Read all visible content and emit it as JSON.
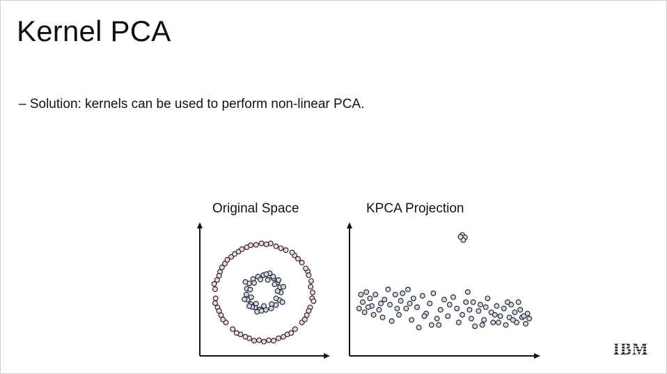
{
  "slide": {
    "title": "Kernel PCA",
    "bullet": "– Solution: kernels can be used to perform non-linear PCA.",
    "logo_text": "IBM"
  },
  "chart_data": [
    {
      "type": "scatter",
      "title": "Original Space",
      "xlabel": "",
      "ylabel": "",
      "xlim": [
        -1.2,
        1.2
      ],
      "ylim": [
        -1.2,
        1.2
      ],
      "grid": false,
      "axis_ticks": false,
      "series": [
        {
          "color": "#f3d6d9",
          "points": [
            [
              1.0,
              0.0
            ],
            [
              0.97,
              0.24
            ],
            [
              0.9,
              0.44
            ],
            [
              0.78,
              0.62
            ],
            [
              0.63,
              0.77
            ],
            [
              0.45,
              0.88
            ],
            [
              0.25,
              0.96
            ],
            [
              0.05,
              1.0
            ],
            [
              -0.16,
              0.99
            ],
            [
              -0.35,
              0.94
            ],
            [
              -0.52,
              0.85
            ],
            [
              -0.67,
              0.74
            ],
            [
              -0.8,
              0.6
            ],
            [
              -0.9,
              0.43
            ],
            [
              -0.96,
              0.26
            ],
            [
              -1.0,
              0.07
            ],
            [
              -0.99,
              -0.12
            ],
            [
              -0.95,
              -0.31
            ],
            [
              -0.88,
              -0.47
            ],
            [
              -0.78,
              -0.62
            ],
            [
              -0.64,
              -0.76
            ],
            [
              -0.48,
              -0.87
            ],
            [
              -0.3,
              -0.95
            ],
            [
              -0.1,
              -0.99
            ],
            [
              0.1,
              -0.99
            ],
            [
              0.3,
              -0.95
            ],
            [
              0.48,
              -0.87
            ],
            [
              0.64,
              -0.76
            ],
            [
              0.78,
              -0.62
            ],
            [
              0.88,
              -0.47
            ],
            [
              0.95,
              -0.31
            ],
            [
              0.99,
              -0.12
            ],
            [
              0.96,
              0.12
            ],
            [
              0.86,
              0.5
            ],
            [
              0.58,
              0.83
            ],
            [
              0.14,
              1.02
            ],
            [
              -0.27,
              0.98
            ],
            [
              -0.6,
              0.8
            ],
            [
              -0.86,
              0.52
            ],
            [
              -1.02,
              0.18
            ],
            [
              -1.0,
              -0.22
            ],
            [
              -0.84,
              -0.56
            ],
            [
              -0.56,
              -0.84
            ],
            [
              -0.2,
              -1.0
            ],
            [
              0.2,
              -1.0
            ],
            [
              0.56,
              -0.84
            ],
            [
              0.84,
              -0.56
            ],
            [
              1.02,
              -0.18
            ],
            [
              0.7,
              0.7
            ],
            [
              0.35,
              0.92
            ],
            [
              -0.45,
              0.9
            ],
            [
              -0.92,
              0.35
            ],
            [
              -0.92,
              -0.38
            ],
            [
              -0.38,
              -0.92
            ],
            [
              0.4,
              -0.92
            ],
            [
              0.92,
              -0.38
            ],
            [
              0.92,
              0.36
            ],
            [
              -0.05,
              1.02
            ],
            [
              -0.75,
              0.68
            ],
            [
              0.0,
              -1.02
            ]
          ]
        },
        {
          "color": "#cdd9ea",
          "points": [
            [
              0.35,
              0.0
            ],
            [
              0.33,
              0.11
            ],
            [
              0.28,
              0.21
            ],
            [
              0.2,
              0.29
            ],
            [
              0.1,
              0.34
            ],
            [
              -0.01,
              0.36
            ],
            [
              -0.12,
              0.33
            ],
            [
              -0.22,
              0.28
            ],
            [
              -0.3,
              0.19
            ],
            [
              -0.35,
              0.08
            ],
            [
              -0.36,
              -0.04
            ],
            [
              -0.33,
              -0.15
            ],
            [
              -0.27,
              -0.24
            ],
            [
              -0.18,
              -0.31
            ],
            [
              -0.08,
              -0.35
            ],
            [
              0.04,
              -0.36
            ],
            [
              0.15,
              -0.33
            ],
            [
              0.25,
              -0.26
            ],
            [
              0.32,
              -0.16
            ],
            [
              0.28,
              0.03
            ],
            [
              0.22,
              0.17
            ],
            [
              0.08,
              0.26
            ],
            [
              -0.07,
              0.27
            ],
            [
              -0.2,
              0.2
            ],
            [
              -0.28,
              0.06
            ],
            [
              -0.26,
              -0.1
            ],
            [
              -0.16,
              -0.23
            ],
            [
              0.0,
              -0.28
            ],
            [
              0.16,
              -0.24
            ],
            [
              0.25,
              -0.12
            ],
            [
              0.4,
              0.12
            ],
            [
              -0.4,
              -0.14
            ],
            [
              0.12,
              0.4
            ],
            [
              -0.14,
              -0.4
            ],
            [
              0.38,
              -0.2
            ],
            [
              -0.38,
              0.22
            ],
            [
              0.19,
              0.33
            ],
            [
              -0.24,
              -0.3
            ],
            [
              0.3,
              0.26
            ],
            [
              -0.3,
              -0.28
            ],
            [
              0.05,
              0.38
            ],
            [
              -0.05,
              -0.38
            ]
          ]
        }
      ]
    },
    {
      "type": "scatter",
      "title": "KPCA Projection",
      "xlabel": "",
      "ylabel": "",
      "xlim": [
        0,
        1
      ],
      "ylim": [
        0,
        1
      ],
      "grid": false,
      "axis_ticks": false,
      "series": [
        {
          "color": "#f3d6d9",
          "points": [
            [
              0.6,
              0.91
            ],
            [
              0.615,
              0.89
            ],
            [
              0.605,
              0.87
            ],
            [
              0.59,
              0.895
            ]
          ]
        },
        {
          "color": "#cdd9ea",
          "points": [
            [
              0.04,
              0.44
            ],
            [
              0.07,
              0.46
            ],
            [
              0.05,
              0.38
            ],
            [
              0.09,
              0.41
            ],
            [
              0.12,
              0.44
            ],
            [
              0.1,
              0.35
            ],
            [
              0.06,
              0.3
            ],
            [
              0.14,
              0.32
            ],
            [
              0.17,
              0.4
            ],
            [
              0.2,
              0.36
            ],
            [
              0.16,
              0.26
            ],
            [
              0.23,
              0.44
            ],
            [
              0.26,
              0.39
            ],
            [
              0.25,
              0.28
            ],
            [
              0.29,
              0.33
            ],
            [
              0.21,
              0.23
            ],
            [
              0.3,
              0.48
            ],
            [
              0.33,
              0.41
            ],
            [
              0.35,
              0.34
            ],
            [
              0.32,
              0.24
            ],
            [
              0.36,
              0.18
            ],
            [
              0.4,
              0.29
            ],
            [
              0.42,
              0.37
            ],
            [
              0.44,
              0.45
            ],
            [
              0.46,
              0.25
            ],
            [
              0.48,
              0.32
            ],
            [
              0.5,
              0.4
            ],
            [
              0.47,
              0.2
            ],
            [
              0.52,
              0.27
            ],
            [
              0.55,
              0.42
            ],
            [
              0.57,
              0.33
            ],
            [
              0.58,
              0.22
            ],
            [
              0.6,
              0.28
            ],
            [
              0.62,
              0.38
            ],
            [
              0.63,
              0.46
            ],
            [
              0.65,
              0.25
            ],
            [
              0.67,
              0.19
            ],
            [
              0.69,
              0.31
            ],
            [
              0.7,
              0.36
            ],
            [
              0.72,
              0.24
            ],
            [
              0.74,
              0.41
            ],
            [
              0.76,
              0.3
            ],
            [
              0.77,
              0.22
            ],
            [
              0.79,
              0.35
            ],
            [
              0.81,
              0.27
            ],
            [
              0.83,
              0.33
            ],
            [
              0.84,
              0.2
            ],
            [
              0.86,
              0.26
            ],
            [
              0.87,
              0.36
            ],
            [
              0.89,
              0.3
            ],
            [
              0.9,
              0.22
            ],
            [
              0.92,
              0.32
            ],
            [
              0.93,
              0.26
            ],
            [
              0.95,
              0.21
            ],
            [
              0.96,
              0.29
            ],
            [
              0.03,
              0.33
            ],
            [
              0.11,
              0.28
            ],
            [
              0.19,
              0.48
            ],
            [
              0.27,
              0.45
            ],
            [
              0.38,
              0.43
            ],
            [
              0.43,
              0.2
            ],
            [
              0.53,
              0.36
            ],
            [
              0.64,
              0.32
            ],
            [
              0.73,
              0.34
            ],
            [
              0.8,
              0.22
            ],
            [
              0.85,
              0.38
            ],
            [
              0.91,
              0.38
            ],
            [
              0.97,
              0.25
            ],
            [
              0.08,
              0.34
            ],
            [
              0.15,
              0.37
            ],
            [
              0.24,
              0.33
            ],
            [
              0.31,
              0.37
            ],
            [
              0.39,
              0.27
            ],
            [
              0.66,
              0.38
            ],
            [
              0.71,
              0.2
            ],
            [
              0.78,
              0.28
            ],
            [
              0.88,
              0.24
            ],
            [
              0.94,
              0.27
            ]
          ]
        }
      ]
    }
  ]
}
